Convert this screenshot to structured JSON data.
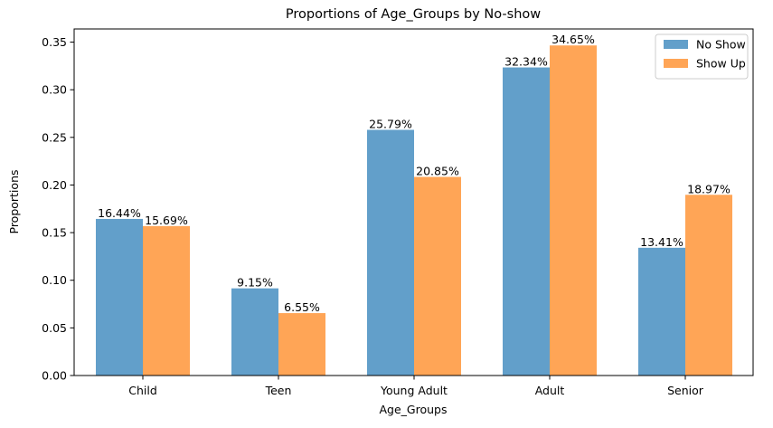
{
  "chart_data": {
    "type": "bar",
    "title": "Proportions of Age_Groups by No-show",
    "xlabel": "Age_Groups",
    "ylabel": "Proportions",
    "categories": [
      "Child",
      "Teen",
      "Young Adult",
      "Adult",
      "Senior"
    ],
    "series": [
      {
        "name": "No Show",
        "color": "#629fca",
        "values": [
          0.1644,
          0.0915,
          0.2579,
          0.3234,
          0.1341
        ],
        "labels": [
          "16.44%",
          "9.15%",
          "25.79%",
          "32.34%",
          "13.41%"
        ]
      },
      {
        "name": "Show Up",
        "color": "#ffa556",
        "values": [
          0.1569,
          0.0655,
          0.2085,
          0.3465,
          0.1897
        ],
        "labels": [
          "15.69%",
          "6.55%",
          "20.85%",
          "34.65%",
          "18.97%"
        ]
      }
    ],
    "yticks": [
      "0.00",
      "0.05",
      "0.10",
      "0.15",
      "0.20",
      "0.25",
      "0.30",
      "0.35"
    ],
    "ytick_values": [
      0,
      0.05,
      0.1,
      0.15,
      0.2,
      0.25,
      0.3,
      0.35
    ],
    "ylim": [
      0,
      0.3638
    ],
    "grid": false,
    "legend": "top-right"
  }
}
